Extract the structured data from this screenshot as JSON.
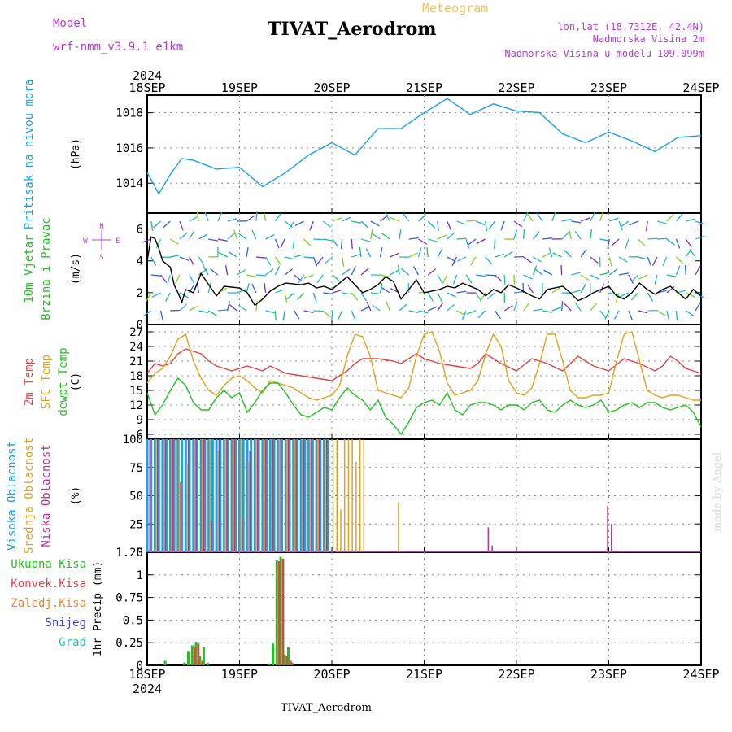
{
  "header": {
    "model_label": "Model",
    "model_name": "wrf-nmm_v3.9.1 e1km",
    "title": "TIVAT_Aerodrom",
    "subtitle": "Meteogram",
    "lonlat": "lon,lat (18.7312E, 42.4N)",
    "elev_line": "Nadmorska Visina 2m",
    "model_elev_line": "Nadmorska Visina u modelu 109.099m",
    "footer_title": "TIVAT_Aerodrom",
    "watermark": "made by Angel"
  },
  "time_axis": {
    "year": "2024",
    "days": [
      "18SEP",
      "19SEP",
      "20SEP",
      "21SEP",
      "22SEP",
      "23SEP",
      "24SEP"
    ]
  },
  "colors": {
    "pressure": "#1aa0e6",
    "temp2m": "#e84040",
    "sfc": "#e0a020",
    "dew": "#22c022",
    "wind_black": "#000000",
    "purple": "#b040d0",
    "total": "#22c022",
    "konv": "#e84040",
    "zaled": "#f08030",
    "snijeg": "#4040e0",
    "grad": "#20c0c0",
    "visoka": "#1aa0e6",
    "srednja": "#e0a020",
    "niska": "#c03090"
  },
  "chart_data": [
    {
      "type": "line",
      "panel": "pressure",
      "ylabel": "(hPa)",
      "side_labels": [
        "Pritisak na nivou mora"
      ],
      "yticks": [
        1014,
        1016,
        1018
      ],
      "ylim": [
        1012.3,
        1019
      ],
      "series": [
        {
          "values_hours": [
            0,
            3,
            6,
            9,
            12,
            18,
            24,
            30,
            36,
            42,
            48,
            54,
            60,
            66,
            72,
            78,
            84,
            90,
            96,
            102,
            108,
            114,
            120,
            126,
            132,
            138,
            144
          ],
          "values": [
            1014.6,
            1013.4,
            1014.5,
            1015.4,
            1015.3,
            1014.8,
            1014.9,
            1013.8,
            1014.6,
            1015.6,
            1016.3,
            1015.6,
            1017.1,
            1017.1,
            1018.0,
            1018.8,
            1017.9,
            1018.5,
            1018.1,
            1018.0,
            1016.8,
            1016.3,
            1016.9,
            1016.4,
            1015.8,
            1016.6,
            1016.7
          ]
        }
      ]
    },
    {
      "type": "line",
      "panel": "wind",
      "ylabel": "(m/s)",
      "side_labels": [
        "10m Vjetar",
        "Brzina i Pravac"
      ],
      "compass": [
        "N",
        "W",
        "E",
        "S"
      ],
      "yticks": [
        0,
        2,
        4,
        6
      ],
      "ylim": [
        0,
        7
      ],
      "series": [
        {
          "values_hours": [
            0,
            1,
            2,
            3,
            4,
            5,
            6,
            7,
            8,
            9,
            10,
            12,
            14,
            16,
            18,
            20,
            24,
            26,
            28,
            30,
            32,
            34,
            36,
            40,
            42,
            44,
            46,
            48,
            52,
            54,
            56,
            58,
            60,
            62,
            64,
            66,
            68,
            70,
            72,
            76,
            78,
            80,
            82,
            84,
            86,
            88,
            90,
            92,
            94,
            96,
            100,
            102,
            104,
            108,
            110,
            112,
            114,
            116,
            118,
            120,
            122,
            124,
            126,
            128,
            130,
            132,
            134,
            136,
            138,
            140,
            142,
            144
          ],
          "values": [
            4.0,
            5.5,
            5.4,
            4.8,
            4.0,
            3.8,
            3.6,
            2.5,
            2.0,
            1.4,
            2.2,
            2.0,
            3.2,
            2.5,
            1.8,
            2.4,
            2.3,
            2.0,
            1.2,
            1.6,
            2.1,
            2.4,
            2.6,
            2.5,
            2.6,
            2.3,
            2.4,
            2.2,
            3.0,
            2.5,
            2.0,
            2.2,
            2.5,
            3.0,
            2.7,
            1.6,
            2.2,
            2.8,
            2.0,
            2.2,
            2.4,
            2.3,
            2.6,
            2.4,
            2.2,
            1.8,
            2.2,
            2.0,
            2.5,
            2.3,
            1.8,
            1.6,
            2.2,
            2.4,
            2.0,
            1.5,
            1.7,
            2.0,
            2.2,
            2.4,
            1.8,
            1.6,
            2.0,
            2.6,
            2.2,
            1.9,
            2.2,
            2.4,
            2.0,
            1.6,
            2.2,
            1.8
          ]
        }
      ]
    },
    {
      "type": "line",
      "panel": "temperature",
      "ylabel": "(C)",
      "side_labels": [
        "2m Temp",
        "SFC Temp",
        "dewpt Temp"
      ],
      "yticks": [
        6,
        9,
        12,
        15,
        18,
        21,
        24,
        27
      ],
      "ylim": [
        5,
        28.5
      ],
      "series": [
        {
          "name": "2m Temp",
          "values_hours": [
            0,
            2,
            4,
            6,
            8,
            10,
            12,
            14,
            16,
            18,
            20,
            22,
            24,
            26,
            28,
            30,
            32,
            36,
            40,
            44,
            48,
            50,
            52,
            54,
            56,
            60,
            64,
            66,
            68,
            70,
            72,
            76,
            80,
            84,
            86,
            88,
            90,
            92,
            96,
            100,
            104,
            108,
            110,
            112,
            114,
            116,
            120,
            124,
            128,
            132,
            134,
            136,
            138,
            140,
            144
          ],
          "values": [
            18.5,
            20.5,
            20.0,
            20.5,
            22.5,
            23.5,
            23.0,
            22.5,
            21.0,
            20.0,
            19.5,
            19.0,
            19.5,
            20.0,
            19.5,
            19.0,
            20.0,
            18.5,
            18.0,
            17.5,
            17.0,
            18.0,
            19.0,
            20.5,
            21.5,
            21.5,
            21.0,
            20.5,
            21.5,
            22.5,
            21.5,
            20.5,
            20.0,
            19.5,
            20.5,
            22.5,
            21.5,
            20.5,
            19.0,
            21.5,
            20.5,
            19.0,
            20.5,
            22.0,
            21.0,
            20.0,
            19.0,
            21.5,
            20.5,
            19.0,
            20.0,
            22.0,
            21.0,
            19.5,
            18.5
          ]
        },
        {
          "name": "SFC Temp",
          "values_hours": [
            0,
            2,
            4,
            6,
            8,
            10,
            12,
            14,
            16,
            18,
            20,
            22,
            24,
            26,
            28,
            30,
            32,
            34,
            36,
            38,
            40,
            42,
            44,
            46,
            48,
            50,
            52,
            54,
            56,
            58,
            60,
            62,
            64,
            66,
            68,
            70,
            72,
            74,
            76,
            78,
            80,
            82,
            84,
            86,
            88,
            90,
            92,
            94,
            96,
            98,
            100,
            102,
            104,
            106,
            108,
            110,
            112,
            114,
            116,
            118,
            120,
            122,
            124,
            126,
            128,
            130,
            132,
            134,
            136,
            138,
            140,
            142,
            144
          ],
          "values": [
            16.5,
            18.5,
            19.5,
            22.0,
            25.5,
            26.5,
            21.0,
            17.5,
            15.0,
            14.0,
            16.0,
            17.5,
            18.0,
            17.0,
            15.5,
            14.5,
            17.0,
            16.5,
            16.0,
            15.5,
            14.5,
            13.5,
            13.0,
            13.5,
            14.0,
            16.0,
            22.0,
            26.5,
            26.0,
            22.0,
            15.0,
            14.5,
            14.0,
            13.5,
            15.5,
            22.0,
            26.5,
            27.0,
            23.0,
            16.5,
            14.0,
            14.5,
            15.0,
            17.0,
            22.5,
            26.5,
            24.0,
            17.0,
            14.5,
            14.0,
            15.5,
            20.5,
            26.5,
            26.5,
            21.0,
            15.0,
            13.5,
            13.5,
            14.0,
            14.0,
            14.5,
            21.0,
            26.5,
            27.0,
            21.0,
            15.0,
            14.0,
            13.5,
            14.0,
            14.0,
            13.5,
            13.0,
            13.0
          ]
        },
        {
          "name": "dewpt Temp",
          "values_hours": [
            0,
            2,
            4,
            6,
            8,
            10,
            12,
            14,
            16,
            18,
            20,
            22,
            24,
            26,
            28,
            30,
            32,
            34,
            36,
            38,
            40,
            42,
            44,
            46,
            48,
            50,
            52,
            54,
            56,
            58,
            60,
            62,
            64,
            66,
            68,
            70,
            72,
            74,
            76,
            78,
            80,
            82,
            84,
            86,
            88,
            90,
            92,
            94,
            96,
            98,
            100,
            102,
            104,
            106,
            108,
            110,
            112,
            114,
            116,
            118,
            120,
            122,
            124,
            126,
            128,
            130,
            132,
            134,
            136,
            138,
            140,
            142,
            144
          ],
          "values": [
            14.5,
            10.0,
            12.0,
            15.0,
            17.5,
            16.0,
            12.5,
            11.0,
            11.0,
            13.5,
            15.0,
            13.5,
            14.5,
            10.5,
            12.5,
            15.0,
            16.5,
            16.5,
            14.5,
            12.0,
            10.0,
            9.5,
            10.5,
            11.5,
            11.0,
            13.5,
            15.5,
            14.0,
            13.0,
            11.0,
            13.0,
            9.5,
            8.0,
            6.0,
            8.5,
            11.5,
            12.5,
            13.0,
            12.0,
            14.5,
            11.0,
            10.0,
            12.0,
            12.5,
            12.5,
            12.0,
            11.0,
            12.0,
            12.0,
            11.0,
            12.5,
            13.0,
            11.0,
            10.5,
            12.0,
            13.0,
            12.0,
            11.5,
            12.0,
            13.0,
            10.5,
            11.0,
            12.0,
            12.5,
            11.5,
            12.5,
            12.5,
            11.5,
            11.0,
            11.5,
            12.0,
            10.5,
            7.5
          ]
        }
      ]
    },
    {
      "type": "bar",
      "panel": "cloud_cover",
      "ylabel": "(%)",
      "side_labels": [
        "Visoka Oblacnost",
        "Srednja Oblacnost",
        "Niska Oblacnost"
      ],
      "yticks": [
        0,
        25,
        50,
        75,
        100
      ],
      "ylim": [
        0,
        100
      ],
      "series": [
        {
          "name": "Visoka Oblacnost",
          "values_hours": [
            0,
            1,
            2,
            3,
            4,
            5,
            6,
            7,
            8,
            9,
            10,
            11,
            12,
            13,
            14,
            15,
            16,
            17,
            18,
            19,
            20,
            21,
            22,
            23,
            24,
            25,
            26,
            27,
            28,
            29,
            30,
            31,
            32,
            33,
            34,
            35,
            36,
            37,
            38,
            39,
            40,
            41,
            42,
            43,
            44,
            45,
            46,
            47,
            48
          ],
          "values": [
            100,
            100,
            100,
            100,
            100,
            100,
            100,
            100,
            100,
            100,
            100,
            100,
            100,
            100,
            100,
            100,
            100,
            100,
            100,
            100,
            100,
            100,
            100,
            100,
            100,
            100,
            100,
            100,
            100,
            100,
            100,
            100,
            100,
            100,
            100,
            100,
            100,
            100,
            100,
            100,
            100,
            100,
            100,
            100,
            100,
            100,
            100,
            100,
            0
          ]
        },
        {
          "name": "Srednja Oblacnost",
          "values_hours": [
            2,
            4,
            6,
            8,
            10,
            12,
            14,
            16,
            18,
            20,
            22,
            24,
            26,
            28,
            30,
            32,
            34,
            36,
            38,
            40,
            42,
            44,
            46,
            48,
            49,
            50,
            51,
            52,
            53,
            54,
            55,
            56,
            65
          ],
          "values": [
            100,
            100,
            100,
            100,
            78,
            100,
            100,
            100,
            90,
            100,
            100,
            100,
            80,
            100,
            100,
            100,
            100,
            100,
            100,
            100,
            100,
            100,
            100,
            100,
            100,
            38,
            100,
            100,
            100,
            80,
            100,
            100,
            44
          ]
        },
        {
          "name": "Niska Oblacnost",
          "values_hours": [
            1,
            3,
            5,
            7,
            9,
            11,
            13,
            15,
            17,
            19,
            21,
            23,
            25,
            27,
            29,
            31,
            33,
            35,
            37,
            39,
            41,
            43,
            45,
            47,
            89,
            90,
            120,
            121
          ],
          "values": [
            100,
            100,
            100,
            100,
            62,
            100,
            100,
            100,
            27,
            100,
            100,
            100,
            30,
            90,
            100,
            100,
            100,
            100,
            100,
            100,
            100,
            100,
            100,
            100,
            22,
            6,
            41,
            25
          ]
        }
      ]
    },
    {
      "type": "bar",
      "panel": "precipitation",
      "ylabel": "1hr Precip (mm)",
      "side_labels": [
        "Ukupna Kisa",
        "Konvek.Kisa",
        "Zaledj.Kisa",
        "Snijeg",
        "Grad"
      ],
      "yticks": [
        0,
        0.25,
        0.5,
        0.75,
        1,
        1.25
      ],
      "ylim": [
        0,
        1.25
      ],
      "series": [
        {
          "name": "Ukupna Kisa",
          "values_hours": [
            5,
            10,
            11,
            12,
            13,
            14,
            15,
            16,
            32,
            33,
            34,
            35,
            36,
            37,
            38
          ],
          "values": [
            0.05,
            0.03,
            0.15,
            0.22,
            0.26,
            0.1,
            0.2,
            0.03,
            0.02,
            0.24,
            1.16,
            1.2,
            0.12,
            0.2,
            0.03
          ]
        },
        {
          "name": "Konvek.Kisa",
          "values_hours": [
            12,
            13,
            14,
            34,
            35,
            36,
            37
          ],
          "values": [
            0.2,
            0.24,
            0.05,
            1.15,
            1.18,
            0.1,
            0.05
          ]
        }
      ]
    }
  ]
}
